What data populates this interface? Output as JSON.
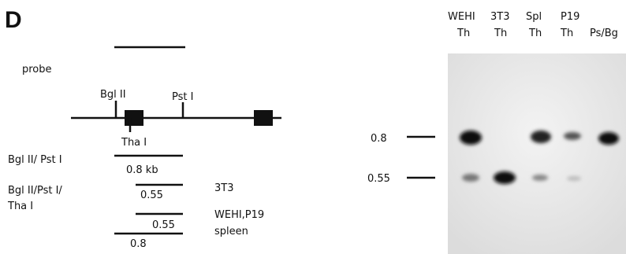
{
  "panel_label": "D",
  "map": {
    "probe_label": "probe",
    "sites": [
      "Bgl II",
      "Pst I",
      "Tha I"
    ]
  },
  "digests": [
    {
      "enzymes": "Bgl II/ Pst I",
      "fragments": [
        {
          "size": "0.8 kb"
        }
      ]
    },
    {
      "enzymes": [
        "Bgl II/Pst I/",
        "Tha I"
      ],
      "fragments": [
        {
          "size": "0.55",
          "source": [
            "3T3"
          ]
        },
        {
          "size": "0.55",
          "source": [
            "WEHI,P19",
            "spleen"
          ]
        },
        {
          "size": "0.8"
        }
      ]
    }
  ],
  "blot": {
    "lanes": [
      [
        "WEHI",
        "Th"
      ],
      [
        "3T3",
        "Th"
      ],
      [
        "Spl",
        "Th"
      ],
      [
        "P19",
        "Th"
      ],
      [
        "Ps/Bg"
      ]
    ],
    "markers": [
      "0.8",
      "0.55"
    ]
  }
}
